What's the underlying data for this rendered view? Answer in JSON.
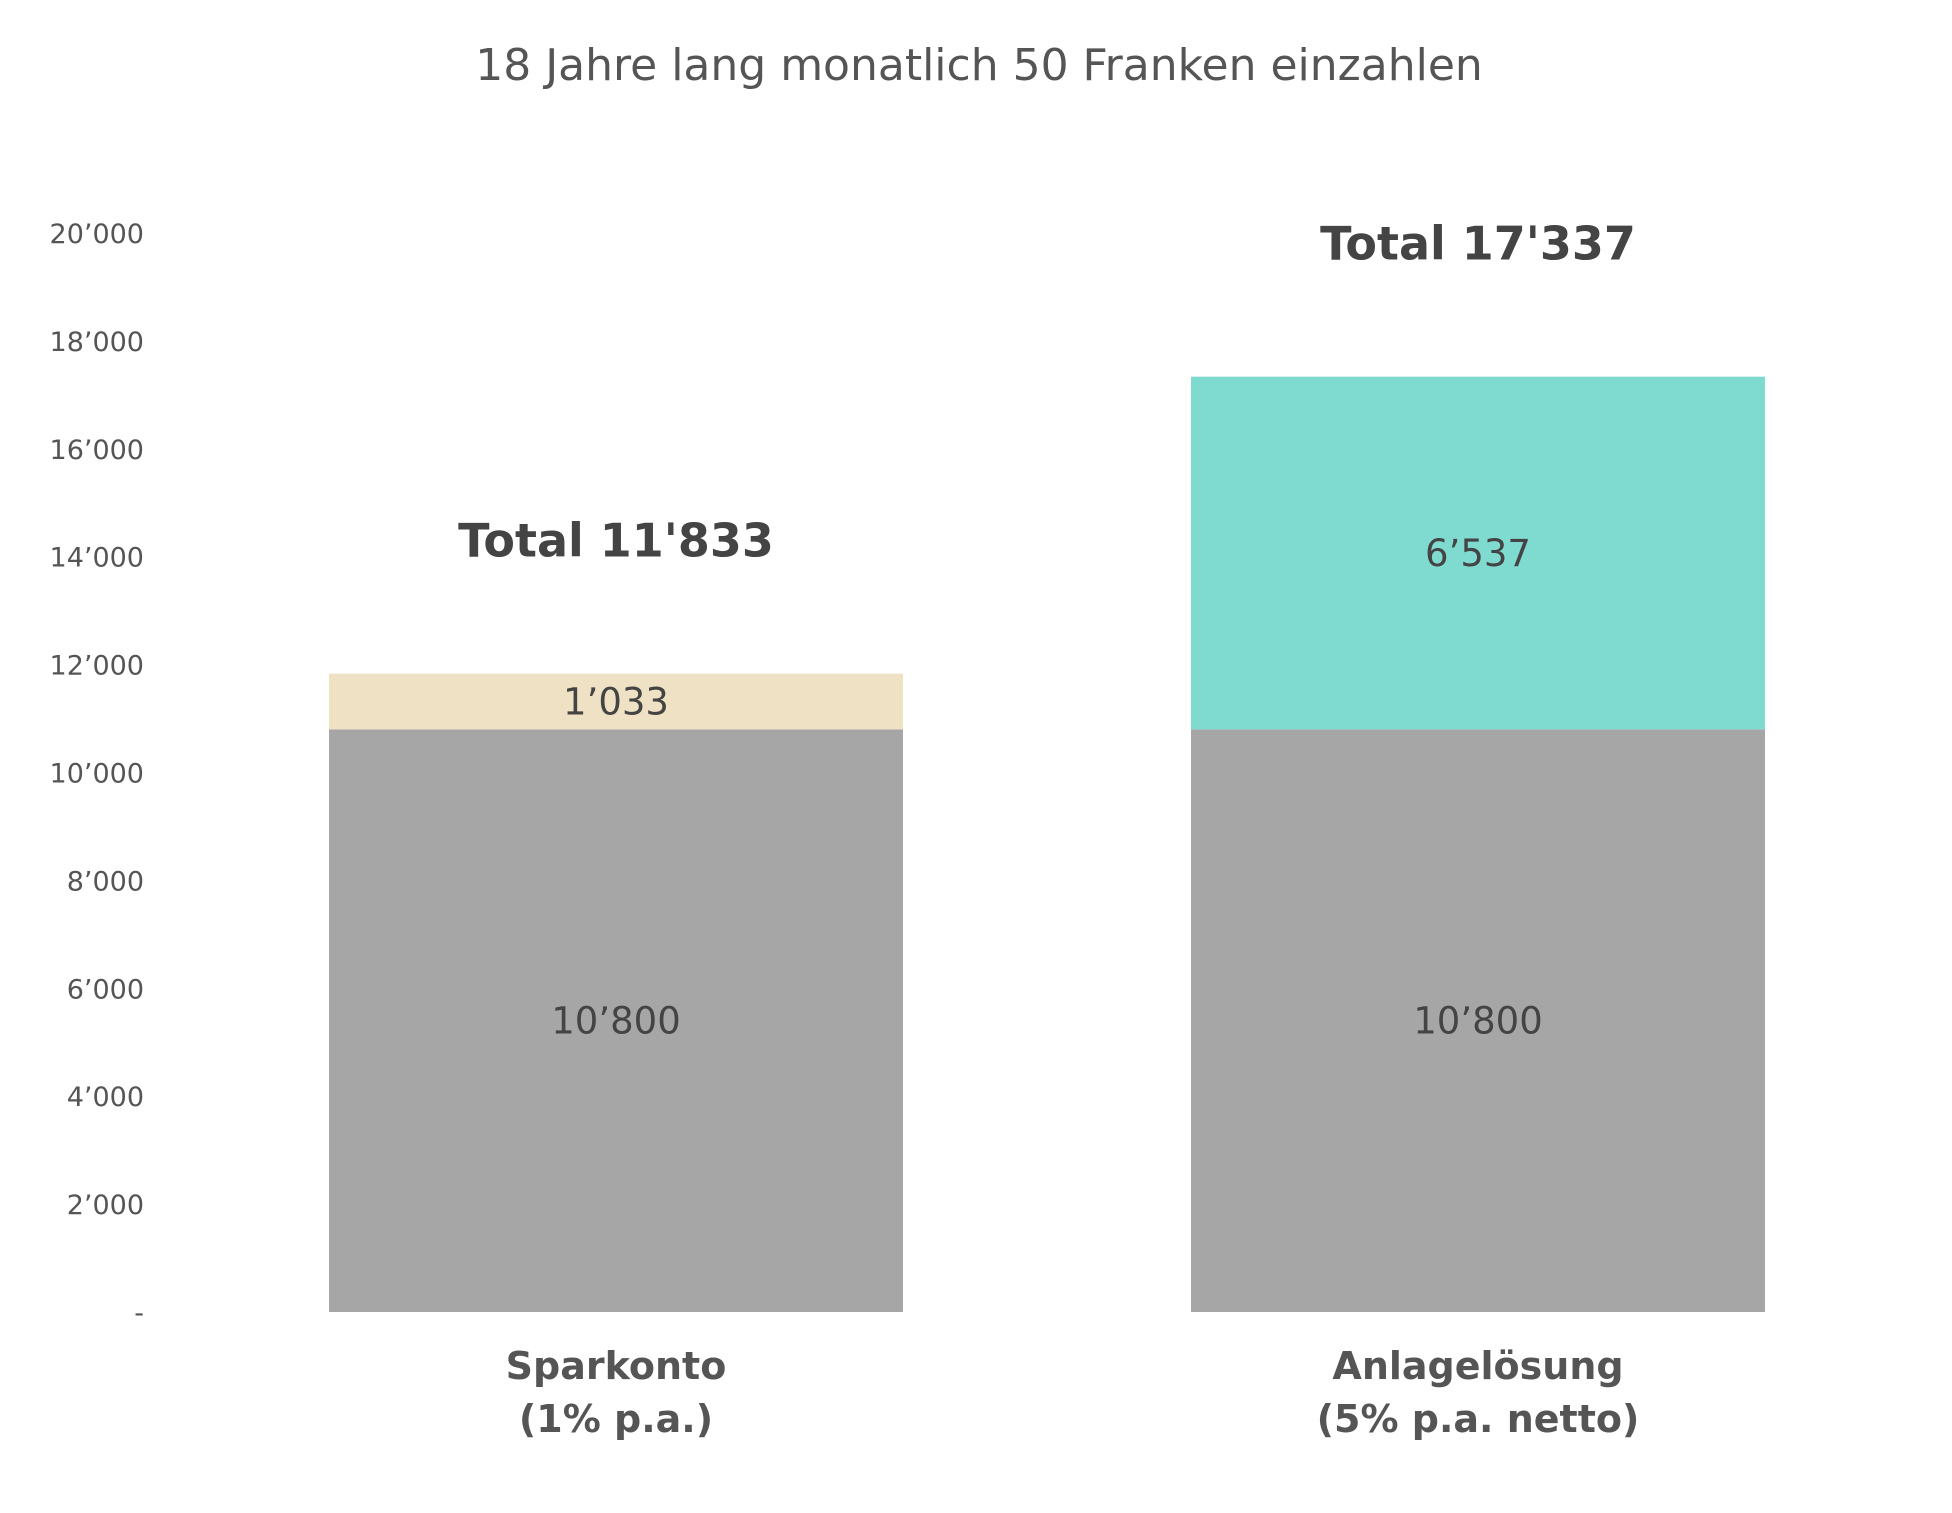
{
  "chart_data": {
    "type": "bar",
    "stacked": true,
    "title": "18 Jahre lang monatlich 50 Franken einzahlen",
    "categories": [
      [
        "Sparkonto",
        "(1% p.a.)"
      ],
      [
        "Anlagelösung",
        "(5% p.a. netto)"
      ]
    ],
    "series": [
      {
        "values": [
          10800,
          10800
        ],
        "labels": [
          "10’800",
          "10’800"
        ],
        "colors": [
          "#a6a6a6",
          "#a6a6a6"
        ]
      },
      {
        "values": [
          1033,
          6537
        ],
        "labels": [
          "1’033",
          "6’537"
        ],
        "colors": [
          "#efe1c4",
          "#7fdbd0"
        ]
      }
    ],
    "totals": [
      "Total 11'833",
      "Total 17'337"
    ],
    "ylim": [
      0,
      20000
    ],
    "yticks": [
      0,
      2000,
      4000,
      6000,
      8000,
      10000,
      12000,
      14000,
      16000,
      18000,
      20000
    ],
    "ytick_labels": [
      "-",
      "2’000",
      "4’000",
      "6’000",
      "8’000",
      "10’000",
      "12’000",
      "14’000",
      "16’000",
      "18’000",
      "20’000"
    ],
    "grid": false,
    "legend": "none",
    "text_color": "#444444"
  }
}
